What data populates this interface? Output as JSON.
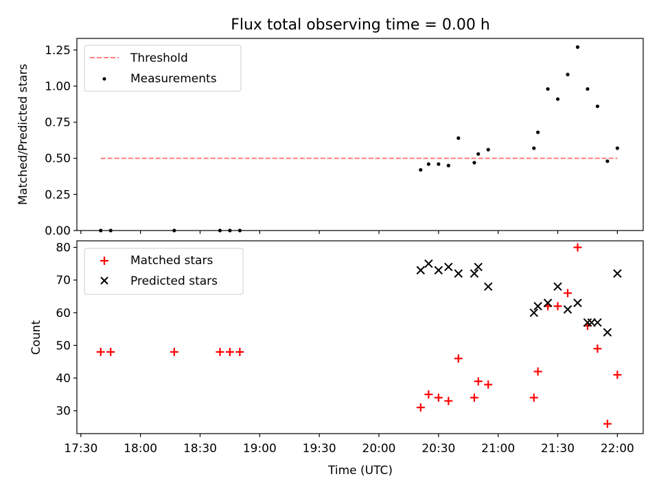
{
  "figure_title": "Flux total observing time = 0.00 h",
  "chart_data": [
    {
      "type": "scatter",
      "title": "Flux total observing time = 0.00 h",
      "xlabel": "",
      "ylabel": "Matched/Predicted stars",
      "ylim": [
        0,
        1.33
      ],
      "xlim": [
        "17:28",
        "22:13"
      ],
      "yticks": [
        "0.00",
        "0.25",
        "0.50",
        "0.75",
        "1.00",
        "1.25"
      ],
      "ytick_values": [
        0,
        0.25,
        0.5,
        0.75,
        1.0,
        1.25
      ],
      "legend": "top-left",
      "threshold": {
        "name": "Threshold",
        "value": 0.5,
        "x_start": "17:40",
        "x_end": "22:00",
        "color": "#ff7f7f"
      },
      "series": [
        {
          "name": "Measurements",
          "marker": "dot",
          "color": "#000000",
          "x": [
            "17:40",
            "17:45",
            "18:17",
            "18:40",
            "18:45",
            "18:50",
            "20:21",
            "20:25",
            "20:30",
            "20:35",
            "20:40",
            "20:48",
            "20:50",
            "20:55",
            "21:18",
            "21:20",
            "21:25",
            "21:30",
            "21:35",
            "21:40",
            "21:45",
            "21:50",
            "21:55",
            "22:00"
          ],
          "y": [
            0.0,
            0.0,
            0.0,
            0.0,
            0.0,
            0.0,
            0.42,
            0.46,
            0.46,
            0.45,
            0.64,
            0.47,
            0.53,
            0.56,
            0.57,
            0.68,
            0.98,
            0.91,
            1.08,
            1.27,
            0.98,
            0.86,
            0.48,
            0.57
          ]
        }
      ]
    },
    {
      "type": "scatter",
      "title": "",
      "xlabel": "Time (UTC)",
      "ylabel": "Count",
      "ylim": [
        23,
        82
      ],
      "xlim": [
        "17:28",
        "22:13"
      ],
      "yticks": [
        "30",
        "40",
        "50",
        "60",
        "70",
        "80"
      ],
      "ytick_values": [
        30,
        40,
        50,
        60,
        70,
        80
      ],
      "xticks": [
        "17:30",
        "18:00",
        "18:30",
        "19:00",
        "19:30",
        "20:00",
        "20:30",
        "21:00",
        "21:30",
        "22:00"
      ],
      "legend": "top-left",
      "series": [
        {
          "name": "Matched stars",
          "marker": "plus",
          "color": "#ff0000",
          "x": [
            "17:40",
            "17:45",
            "18:17",
            "18:40",
            "18:45",
            "18:50",
            "20:21",
            "20:25",
            "20:30",
            "20:35",
            "20:40",
            "20:48",
            "20:50",
            "20:55",
            "21:18",
            "21:20",
            "21:25",
            "21:30",
            "21:35",
            "21:40",
            "21:45",
            "21:50",
            "21:55",
            "22:00"
          ],
          "y": [
            48,
            48,
            48,
            48,
            48,
            48,
            31,
            35,
            34,
            33,
            46,
            34,
            39,
            38,
            34,
            42,
            62,
            62,
            66,
            80,
            56,
            49,
            26,
            41
          ]
        },
        {
          "name": "Predicted stars",
          "marker": "x",
          "color": "#000000",
          "x": [
            "20:21",
            "20:25",
            "20:30",
            "20:35",
            "20:40",
            "20:48",
            "20:50",
            "20:55",
            "21:18",
            "21:20",
            "21:25",
            "21:30",
            "21:35",
            "21:40",
            "21:45",
            "21:47",
            "21:50",
            "21:55",
            "22:00"
          ],
          "y": [
            73,
            75,
            73,
            74,
            72,
            72,
            74,
            68,
            60,
            62,
            63,
            68,
            61,
            63,
            57,
            57,
            57,
            54,
            72
          ]
        }
      ]
    }
  ]
}
